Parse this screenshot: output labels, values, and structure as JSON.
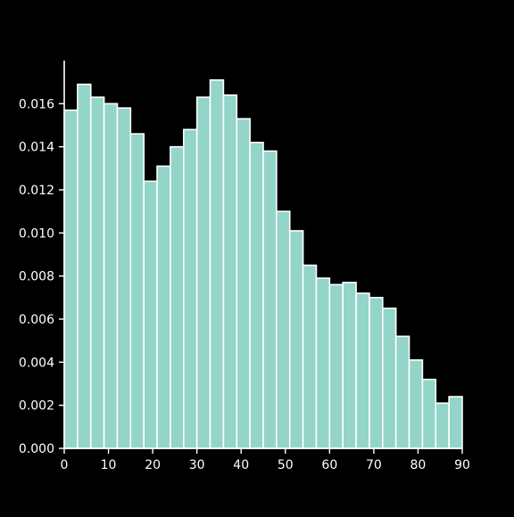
{
  "chart_data": {
    "type": "bar",
    "subtype": "histogram",
    "title": "",
    "xlabel": "",
    "ylabel": "",
    "bin_edges": [
      0,
      3,
      6,
      9,
      12,
      15,
      18,
      21,
      24,
      27,
      30,
      33,
      36,
      39,
      42,
      45,
      48,
      51,
      54,
      57,
      60,
      63,
      66,
      69,
      72,
      75,
      78,
      81,
      84,
      87,
      90
    ],
    "values": [
      0.0157,
      0.0169,
      0.0163,
      0.016,
      0.0158,
      0.0146,
      0.0124,
      0.0131,
      0.014,
      0.0148,
      0.0163,
      0.0171,
      0.0164,
      0.0153,
      0.0142,
      0.0138,
      0.011,
      0.0101,
      0.0085,
      0.0079,
      0.0076,
      0.0077,
      0.0072,
      0.007,
      0.0065,
      0.0052,
      0.0041,
      0.0032,
      0.0021,
      0.0024
    ],
    "xlim": [
      0,
      90
    ],
    "ylim": [
      0,
      0.018
    ],
    "xticks": [
      0,
      10,
      20,
      30,
      40,
      50,
      60,
      70,
      80,
      90
    ],
    "xtick_labels": [
      "0",
      "10",
      "20",
      "30",
      "40",
      "50",
      "60",
      "70",
      "80",
      "90"
    ],
    "yticks": [
      0,
      0.002,
      0.004,
      0.006,
      0.008,
      0.01,
      0.012,
      0.014,
      0.016
    ],
    "ytick_labels": [
      "0.000",
      "0.002",
      "0.004",
      "0.006",
      "0.008",
      "0.010",
      "0.012",
      "0.014",
      "0.016"
    ],
    "grid": false,
    "bar_color": "#93d5c8",
    "edge_color": "#ffffff",
    "background_color": "#000000",
    "axis_color": "#ffffff"
  }
}
